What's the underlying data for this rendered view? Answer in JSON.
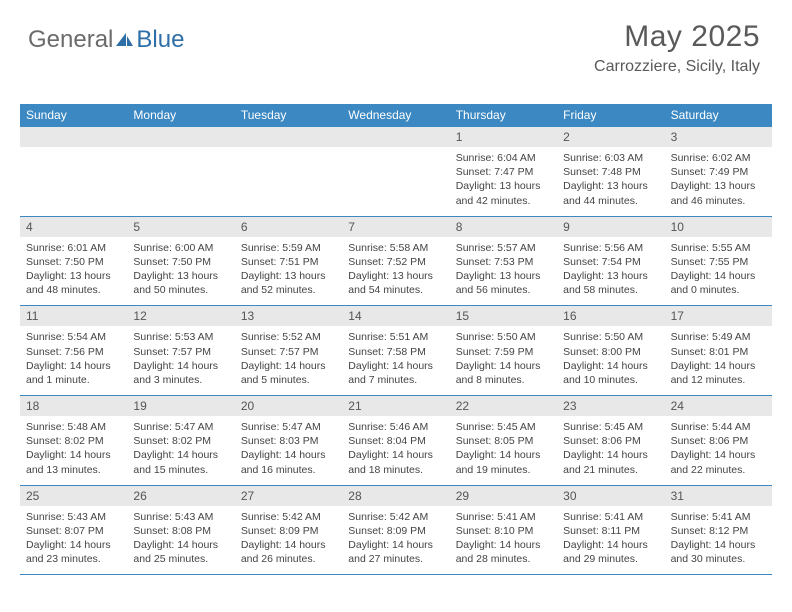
{
  "logo": {
    "word1": "General",
    "word2": "Blue",
    "icon_color": "#2f6fa8"
  },
  "header": {
    "month_title": "May 2025",
    "location": "Carrozziere, Sicily, Italy"
  },
  "colors": {
    "header_bg": "#3b88c3",
    "header_text": "#ffffff",
    "daynum_bg": "#e8e8e8",
    "text": "#444444",
    "rule": "#3b88c3"
  },
  "days_of_week": [
    "Sunday",
    "Monday",
    "Tuesday",
    "Wednesday",
    "Thursday",
    "Friday",
    "Saturday"
  ],
  "weeks": [
    [
      null,
      null,
      null,
      null,
      {
        "n": "1",
        "sunrise": "6:04 AM",
        "sunset": "7:47 PM",
        "daylight": "13 hours and 42 minutes."
      },
      {
        "n": "2",
        "sunrise": "6:03 AM",
        "sunset": "7:48 PM",
        "daylight": "13 hours and 44 minutes."
      },
      {
        "n": "3",
        "sunrise": "6:02 AM",
        "sunset": "7:49 PM",
        "daylight": "13 hours and 46 minutes."
      }
    ],
    [
      {
        "n": "4",
        "sunrise": "6:01 AM",
        "sunset": "7:50 PM",
        "daylight": "13 hours and 48 minutes."
      },
      {
        "n": "5",
        "sunrise": "6:00 AM",
        "sunset": "7:50 PM",
        "daylight": "13 hours and 50 minutes."
      },
      {
        "n": "6",
        "sunrise": "5:59 AM",
        "sunset": "7:51 PM",
        "daylight": "13 hours and 52 minutes."
      },
      {
        "n": "7",
        "sunrise": "5:58 AM",
        "sunset": "7:52 PM",
        "daylight": "13 hours and 54 minutes."
      },
      {
        "n": "8",
        "sunrise": "5:57 AM",
        "sunset": "7:53 PM",
        "daylight": "13 hours and 56 minutes."
      },
      {
        "n": "9",
        "sunrise": "5:56 AM",
        "sunset": "7:54 PM",
        "daylight": "13 hours and 58 minutes."
      },
      {
        "n": "10",
        "sunrise": "5:55 AM",
        "sunset": "7:55 PM",
        "daylight": "14 hours and 0 minutes."
      }
    ],
    [
      {
        "n": "11",
        "sunrise": "5:54 AM",
        "sunset": "7:56 PM",
        "daylight": "14 hours and 1 minute."
      },
      {
        "n": "12",
        "sunrise": "5:53 AM",
        "sunset": "7:57 PM",
        "daylight": "14 hours and 3 minutes."
      },
      {
        "n": "13",
        "sunrise": "5:52 AM",
        "sunset": "7:57 PM",
        "daylight": "14 hours and 5 minutes."
      },
      {
        "n": "14",
        "sunrise": "5:51 AM",
        "sunset": "7:58 PM",
        "daylight": "14 hours and 7 minutes."
      },
      {
        "n": "15",
        "sunrise": "5:50 AM",
        "sunset": "7:59 PM",
        "daylight": "14 hours and 8 minutes."
      },
      {
        "n": "16",
        "sunrise": "5:50 AM",
        "sunset": "8:00 PM",
        "daylight": "14 hours and 10 minutes."
      },
      {
        "n": "17",
        "sunrise": "5:49 AM",
        "sunset": "8:01 PM",
        "daylight": "14 hours and 12 minutes."
      }
    ],
    [
      {
        "n": "18",
        "sunrise": "5:48 AM",
        "sunset": "8:02 PM",
        "daylight": "14 hours and 13 minutes."
      },
      {
        "n": "19",
        "sunrise": "5:47 AM",
        "sunset": "8:02 PM",
        "daylight": "14 hours and 15 minutes."
      },
      {
        "n": "20",
        "sunrise": "5:47 AM",
        "sunset": "8:03 PM",
        "daylight": "14 hours and 16 minutes."
      },
      {
        "n": "21",
        "sunrise": "5:46 AM",
        "sunset": "8:04 PM",
        "daylight": "14 hours and 18 minutes."
      },
      {
        "n": "22",
        "sunrise": "5:45 AM",
        "sunset": "8:05 PM",
        "daylight": "14 hours and 19 minutes."
      },
      {
        "n": "23",
        "sunrise": "5:45 AM",
        "sunset": "8:06 PM",
        "daylight": "14 hours and 21 minutes."
      },
      {
        "n": "24",
        "sunrise": "5:44 AM",
        "sunset": "8:06 PM",
        "daylight": "14 hours and 22 minutes."
      }
    ],
    [
      {
        "n": "25",
        "sunrise": "5:43 AM",
        "sunset": "8:07 PM",
        "daylight": "14 hours and 23 minutes."
      },
      {
        "n": "26",
        "sunrise": "5:43 AM",
        "sunset": "8:08 PM",
        "daylight": "14 hours and 25 minutes."
      },
      {
        "n": "27",
        "sunrise": "5:42 AM",
        "sunset": "8:09 PM",
        "daylight": "14 hours and 26 minutes."
      },
      {
        "n": "28",
        "sunrise": "5:42 AM",
        "sunset": "8:09 PM",
        "daylight": "14 hours and 27 minutes."
      },
      {
        "n": "29",
        "sunrise": "5:41 AM",
        "sunset": "8:10 PM",
        "daylight": "14 hours and 28 minutes."
      },
      {
        "n": "30",
        "sunrise": "5:41 AM",
        "sunset": "8:11 PM",
        "daylight": "14 hours and 29 minutes."
      },
      {
        "n": "31",
        "sunrise": "5:41 AM",
        "sunset": "8:12 PM",
        "daylight": "14 hours and 30 minutes."
      }
    ]
  ],
  "labels": {
    "sunrise": "Sunrise:",
    "sunset": "Sunset:",
    "daylight": "Daylight:"
  }
}
